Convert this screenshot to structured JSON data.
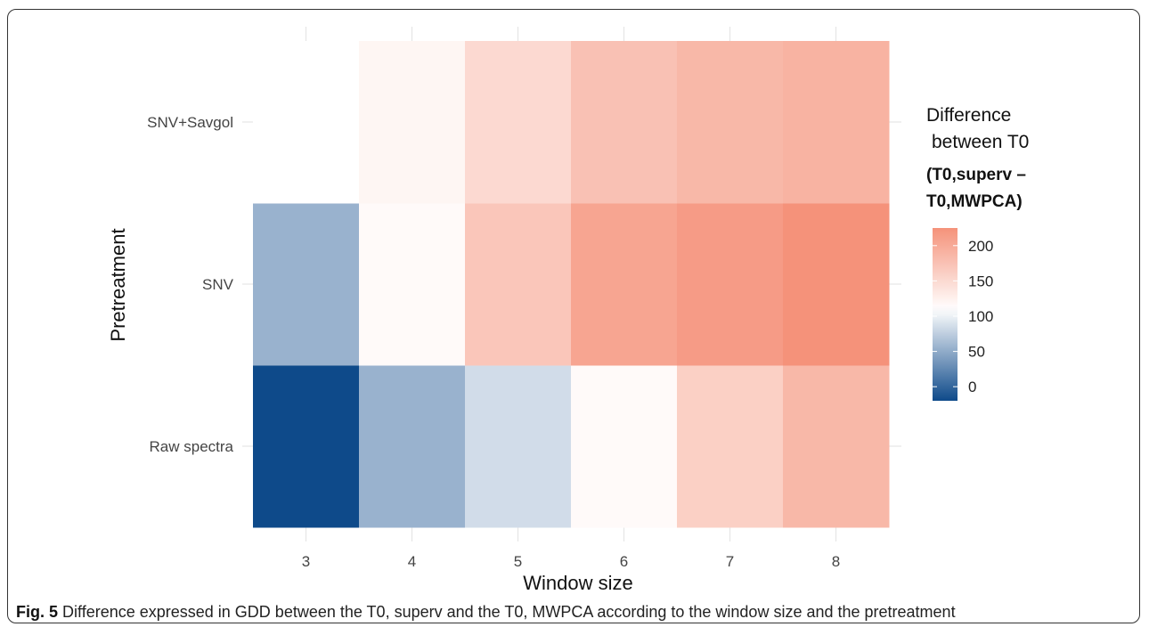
{
  "chart_data": {
    "type": "heatmap",
    "x": [
      "3",
      "4",
      "5",
      "6",
      "7",
      "8"
    ],
    "y": [
      "Raw spectra",
      "SNV",
      "SNV+Savgol"
    ],
    "values": [
      [
        -20,
        55,
        85,
        115,
        160,
        185
      ],
      [
        55,
        115,
        170,
        205,
        215,
        230
      ],
      [
        110,
        120,
        150,
        175,
        185,
        190
      ]
    ],
    "xlabel": "Window size",
    "ylabel": "Pretreatment",
    "legend_title_lines": [
      "Difference",
      "between T0",
      "(T0,superv –",
      "T0,MWPCA)"
    ],
    "legend_ticks": [
      0,
      50,
      100,
      150,
      200
    ],
    "color_range": [
      -20,
      225
    ],
    "color_low": "#0e4a8a",
    "color_mid": "#ffffff",
    "color_high": "#f5927a",
    "color_mid_value": 110,
    "legend_position": "right",
    "grid": true
  },
  "caption": {
    "label": "Fig. 5",
    "text": "Difference expressed in GDD between the T0, superv and the T0, MWPCA according to the window size and the pretreatment"
  }
}
